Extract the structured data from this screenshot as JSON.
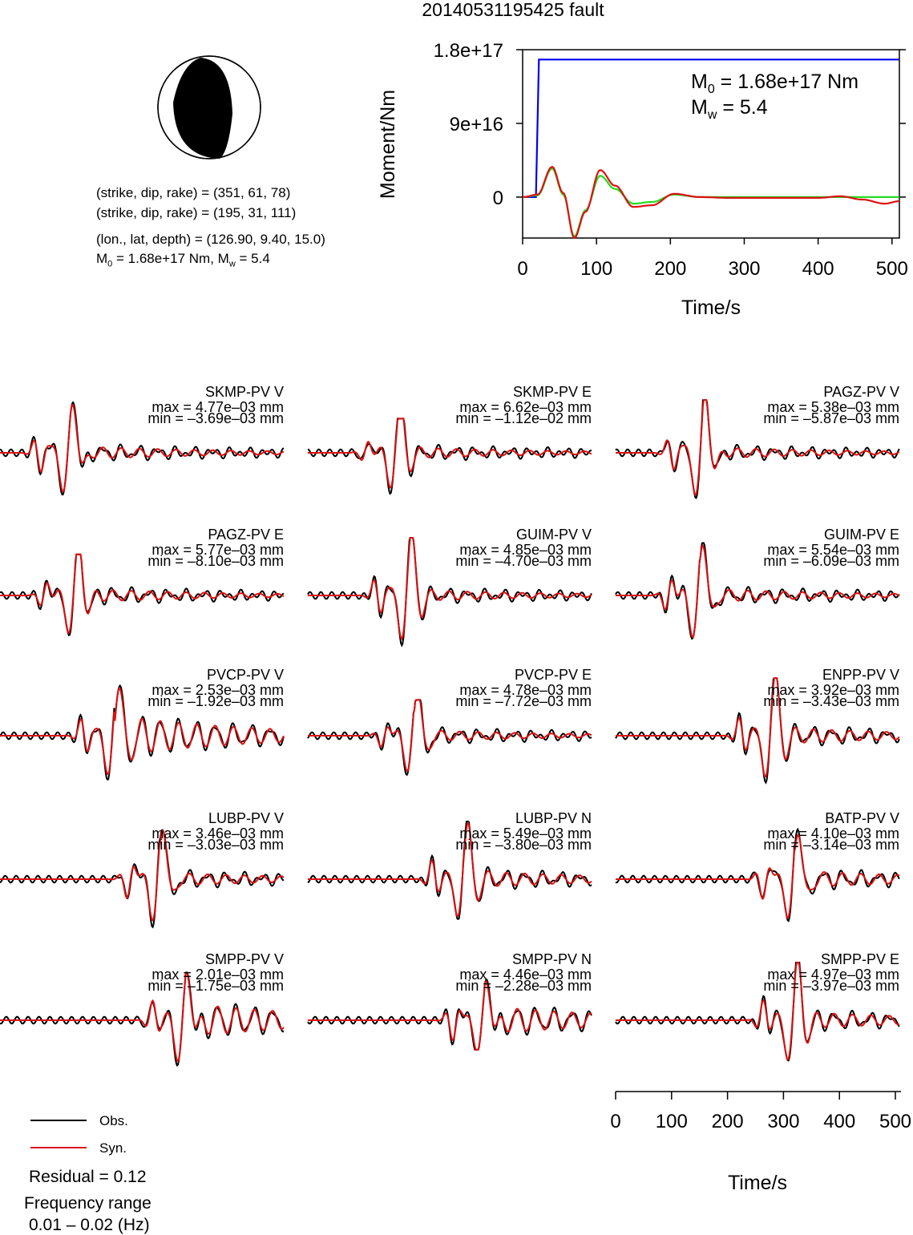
{
  "figure_title": "20140531195425 fault",
  "info": {
    "np1": "(strike, dip, rake) = (351, 61, 78)",
    "np2": "(strike, dip, rake) = (195, 31, 111)",
    "location": "(lon., lat, depth) = (126.90, 9.40, 15.0)",
    "m0_prefix": "M",
    "m0_sub": "0",
    "m0_rest": " = 1.68e+17 Nm, M",
    "mw_sub": "w",
    "mw_rest": " = 5.4"
  },
  "legend": {
    "obs_label": "Obs.",
    "syn_label": "Syn.",
    "obs_color": "#000000",
    "syn_color": "#dd1111"
  },
  "residual_text": "Residual = 0.12",
  "freq_title": "Frequency range",
  "freq_value": "0.01 – 0.02 (Hz)",
  "colors": {
    "moment": "#0000ee",
    "stf_red": "#dd1111",
    "stf_green": "#22dd22",
    "beachball_fill": "#000000"
  },
  "chart_data": [
    {
      "type": "line",
      "title": "",
      "xlabel": "Time/s",
      "ylabel": "Moment/Nm",
      "xlim": [
        0,
        510
      ],
      "ylim": [
        -50000000000000000,
        180000000000000000
      ],
      "xticks": [
        "0",
        "100",
        "200",
        "300",
        "400",
        "500"
      ],
      "yticks": [
        "0",
        "9e+16",
        "1.8e+17"
      ],
      "annotation": {
        "m0_main": "M",
        "m0_sub": "0",
        "m0_rest": " = 1.68e+17 Nm",
        "mw_main": "M",
        "mw_sub": "w",
        "mw_rest": " = 5.4"
      },
      "series": [
        {
          "kind": "step",
          "x": [
            0,
            18,
            22,
            510
          ],
          "y": [
            0,
            0,
            168000000000000000,
            168000000000000000
          ]
        },
        {
          "kind": "wavelet",
          "x": [
            0,
            20,
            40,
            55,
            70,
            85,
            105,
            125,
            150,
            175,
            205,
            240,
            280,
            320,
            360,
            400,
            430,
            460,
            490,
            510
          ],
          "y": [
            0,
            3000000000000000,
            37000000000000000,
            5000000000000000,
            -50000000000000000,
            -18000000000000000,
            33000000000000000,
            14000000000000000,
            -12000000000000000,
            -10000000000000000,
            4000000000000000,
            0,
            -1000000000000000,
            -1000000000000000,
            -1000000000000000,
            -1000000000000000,
            1000000000000000,
            -3000000000000000,
            -8000000000000000,
            -5000000000000000
          ]
        },
        {
          "kind": "wavelet",
          "x": [
            0,
            20,
            40,
            55,
            70,
            85,
            105,
            125,
            150,
            175,
            205,
            240,
            280,
            320,
            360,
            400,
            430,
            460,
            490,
            510
          ],
          "y": [
            0,
            2000000000000000,
            35000000000000000,
            3000000000000000,
            -48000000000000000,
            -16000000000000000,
            26000000000000000,
            10000000000000000,
            -8000000000000000,
            -6000000000000000,
            3000000000000000,
            0,
            0,
            0,
            0,
            0,
            0,
            0,
            0,
            0
          ]
        }
      ]
    },
    {
      "type": "line",
      "title": "",
      "xlabel": "Time/s",
      "ylabel": "",
      "xlim": [
        0,
        510
      ],
      "xticks": [
        "0",
        "100",
        "200",
        "300",
        "400",
        "500"
      ],
      "panels": [
        {
          "station": "SKMP-PV V",
          "max": "max = 4.77e–03 mm",
          "min": "min = –3.69e–03 mm",
          "peak_t": 125,
          "pos": 4.77,
          "neg": 3.69,
          "ring": 0.12
        },
        {
          "station": "SKMP-PV E",
          "max": "max = 6.62e–03 mm",
          "min": "min = –1.12e–02 mm",
          "peak_t": 160,
          "pos": 6.62,
          "neg": 11.2,
          "ring": 0.1
        },
        {
          "station": "PAGZ-PV V",
          "max": "max = 5.38e–03 mm",
          "min": "min = –5.87e–03 mm",
          "peak_t": 155,
          "pos": 5.38,
          "neg": 5.87,
          "ring": 0.1
        },
        {
          "station": "PAGZ-PV E",
          "max": "max = 5.77e–03 mm",
          "min": "min = –8.10e–03 mm",
          "peak_t": 135,
          "pos": 5.77,
          "neg": 8.1,
          "ring": 0.12
        },
        {
          "station": "GUIM-PV V",
          "max": "max = 4.85e–03 mm",
          "min": "min = –4.70e–03 mm",
          "peak_t": 180,
          "pos": 4.85,
          "neg": 4.7,
          "ring": 0.1
        },
        {
          "station": "GUIM-PV E",
          "max": "max = 5.54e–03 mm",
          "min": "min = –6.09e–03 mm",
          "peak_t": 150,
          "pos": 5.54,
          "neg": 6.09,
          "ring": 0.12
        },
        {
          "station": "PVCP-PV V",
          "max": "max = 2.53e–03 mm",
          "min": "min = –1.92e–03 mm",
          "peak_t": 205,
          "pos": 2.53,
          "neg": 1.92,
          "ring": 0.35
        },
        {
          "station": "PVCP-PV E",
          "max": "max = 4.78e–03 mm",
          "min": "min = –7.72e–03 mm",
          "peak_t": 190,
          "pos": 4.78,
          "neg": 7.72,
          "ring": 0.1
        },
        {
          "station": "ENPP-PV V",
          "max": "max = 3.92e–03 mm",
          "min": "min = –3.43e–03 mm",
          "peak_t": 280,
          "pos": 3.92,
          "neg": 3.43,
          "ring": 0.15
        },
        {
          "station": "LUBP-PV V",
          "max": "max = 3.46e–03 mm",
          "min": "min = –3.03e–03 mm",
          "peak_t": 285,
          "pos": 3.46,
          "neg": 3.03,
          "ring": 0.12
        },
        {
          "station": "LUBP-PV N",
          "max": "max = 5.49e–03 mm",
          "min": "min = –3.80e–03 mm",
          "peak_t": 280,
          "pos": 5.49,
          "neg": 3.8,
          "ring": 0.15
        },
        {
          "station": "BATP-PV V",
          "max": "max = 4.10e–03 mm",
          "min": "min = –3.14e–03 mm",
          "peak_t": 320,
          "pos": 4.1,
          "neg": 3.14,
          "ring": 0.15
        },
        {
          "station": "SMPP-PV V",
          "max": "max = 2.01e–03 mm",
          "min": "min = –1.75e–03 mm",
          "peak_t": 330,
          "pos": 2.01,
          "neg": 1.75,
          "ring": 0.3
        },
        {
          "station": "SMPP-PV N",
          "max": "max = 4.46e–03 mm",
          "min": "min = –2.28e–03 mm",
          "peak_t": 315,
          "pos": 4.46,
          "neg": 2.28,
          "ring": 0.25
        },
        {
          "station": "SMPP-PV E",
          "max": "max = 4.97e–03 mm",
          "min": "min = –3.97e–03 mm",
          "peak_t": 320,
          "pos": 4.97,
          "neg": 3.97,
          "ring": 0.15
        }
      ]
    }
  ]
}
